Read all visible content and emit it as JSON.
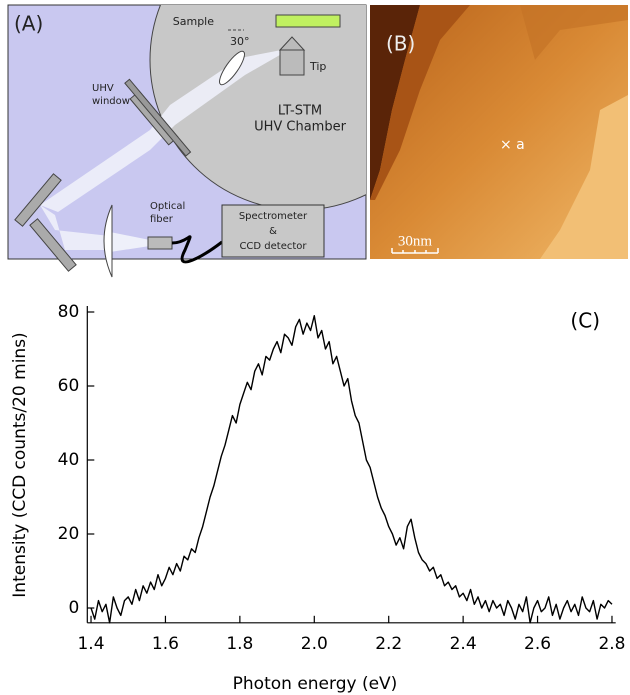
{
  "panel_a": {
    "label": "(A)",
    "sample": "Sample",
    "angle": "30°",
    "tip": "Tip",
    "window": [
      "UHV",
      "window"
    ],
    "chamber": [
      "LT-STM",
      "UHV Chamber"
    ],
    "fiber": [
      "Optical",
      "fiber"
    ],
    "spectrometer": [
      "Spectrometer",
      "&",
      "CCD detector"
    ]
  },
  "panel_b": {
    "label": "(B)",
    "marker": "× a",
    "scale": "30nm"
  },
  "chart_data": {
    "type": "line",
    "label": "(C)",
    "xlabel": "Photon energy (eV)",
    "ylabel": "Intensity (CCD counts/20 mins)",
    "color": "#000000",
    "xlim": [
      1.39,
      2.81
    ],
    "ylim": [
      -4,
      80
    ],
    "xticks": [
      1.4,
      1.6,
      1.8,
      {
        "value": 2,
        "label": "2.0"
      },
      2.2,
      2.4,
      2.6,
      2.8
    ],
    "yticks": [
      0,
      20,
      40,
      60,
      80
    ],
    "x": [
      1.4,
      1.41,
      1.42,
      1.43,
      1.44,
      1.45,
      1.46,
      1.47,
      1.48,
      1.49,
      1.5,
      1.51,
      1.52,
      1.53,
      1.54,
      1.55,
      1.56,
      1.57,
      1.58,
      1.59,
      1.6,
      1.61,
      1.62,
      1.63,
      1.64,
      1.65,
      1.66,
      1.67,
      1.68,
      1.69,
      1.7,
      1.71,
      1.72,
      1.73,
      1.74,
      1.75,
      1.76,
      1.77,
      1.78,
      1.79,
      1.8,
      1.81,
      1.82,
      1.83,
      1.84,
      1.85,
      1.86,
      1.87,
      1.88,
      1.89,
      1.9,
      1.91,
      1.92,
      1.93,
      1.94,
      1.95,
      1.96,
      1.97,
      1.98,
      1.99,
      2,
      2.01,
      2.02,
      2.03,
      2.04,
      2.05,
      2.06,
      2.07,
      2.08,
      2.09,
      2.1,
      2.11,
      2.12,
      2.13,
      2.14,
      2.15,
      2.16,
      2.17,
      2.18,
      2.19,
      2.2,
      2.21,
      2.22,
      2.23,
      2.24,
      2.25,
      2.26,
      2.27,
      2.28,
      2.29,
      2.3,
      2.31,
      2.32,
      2.33,
      2.34,
      2.35,
      2.36,
      2.37,
      2.38,
      2.39,
      2.4,
      2.41,
      2.42,
      2.43,
      2.44,
      2.45,
      2.46,
      2.47,
      2.48,
      2.49,
      2.5,
      2.51,
      2.52,
      2.53,
      2.54,
      2.55,
      2.56,
      2.57,
      2.58,
      2.59,
      2.6,
      2.61,
      2.62,
      2.63,
      2.64,
      2.65,
      2.66,
      2.67,
      2.68,
      2.69,
      2.7,
      2.71,
      2.72,
      2.73,
      2.74,
      2.75,
      2.76,
      2.77,
      2.78,
      2.79,
      2.8
    ],
    "values": [
      0,
      -3,
      2,
      -1,
      1,
      -4,
      3,
      0,
      -2,
      2,
      3,
      1,
      5,
      2,
      6,
      4,
      7,
      5,
      9,
      6,
      8,
      11,
      9,
      12,
      10,
      14,
      13,
      16,
      15,
      19,
      22,
      26,
      30,
      33,
      37,
      41,
      44,
      48,
      52,
      50,
      55,
      58,
      61,
      59,
      64,
      66,
      63,
      68,
      67,
      70,
      72,
      69,
      74,
      73,
      71,
      76,
      78,
      74,
      77,
      75,
      79,
      73,
      75,
      70,
      72,
      66,
      68,
      64,
      60,
      62,
      56,
      52,
      50,
      45,
      40,
      38,
      34,
      30,
      27,
      25,
      22,
      20,
      17,
      19,
      16,
      22,
      24,
      19,
      15,
      13,
      12,
      10,
      11,
      8,
      9,
      6,
      7,
      5,
      6,
      3,
      4,
      2,
      5,
      1,
      3,
      0,
      2,
      -1,
      2,
      0,
      1,
      -2,
      2,
      0,
      -3,
      1,
      -1,
      3,
      -4,
      0,
      2,
      -1,
      0,
      3,
      -2,
      1,
      -3,
      0,
      2,
      -1,
      1,
      -2,
      3,
      0,
      -1,
      2,
      -3,
      1,
      0,
      2,
      1
    ]
  }
}
